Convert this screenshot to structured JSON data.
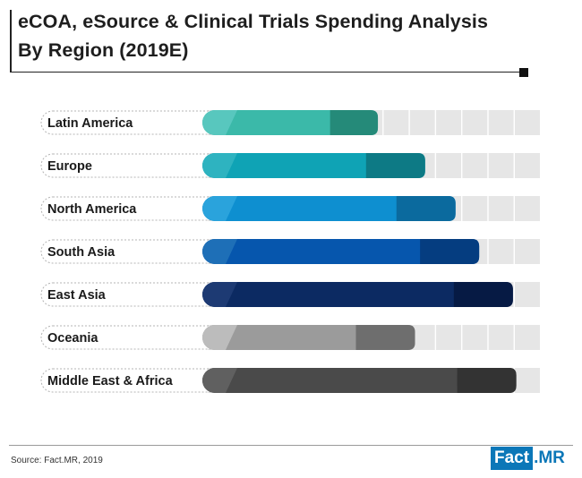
{
  "title": {
    "line1": "eCOA, eSource & Clinical Trials Spending Analysis",
    "line2": "By Region (2019E)"
  },
  "footer": {
    "source": "Source: Fact.MR, 2019",
    "logo_left": "Fact",
    "logo_right": ".MR"
  },
  "chart_data": {
    "type": "bar",
    "orientation": "horizontal",
    "categories": [
      "Latin America",
      "Europe",
      "North America",
      "South Asia",
      "East Asia",
      "Oceania",
      "Middle East & Africa"
    ],
    "values": [
      0.52,
      0.66,
      0.75,
      0.82,
      0.92,
      0.63,
      0.93
    ],
    "xlim": [
      0,
      1
    ],
    "value_axis_shown": false,
    "grid": true,
    "colors": {
      "light": [
        "#58c7be",
        "#2eb3c0",
        "#2aa3dc",
        "#1e6fb7",
        "#1d3a73",
        "#bcbcbc",
        "#606060"
      ],
      "main": [
        "#3bb9a9",
        "#0fa3b5",
        "#0e8fd0",
        "#0656ad",
        "#0c2a62",
        "#9b9b9b",
        "#4a4a4a"
      ],
      "dark": [
        "#258a79",
        "#0d7a85",
        "#0b6a9e",
        "#053d80",
        "#061a44",
        "#6e6e6e",
        "#333333"
      ]
    }
  }
}
